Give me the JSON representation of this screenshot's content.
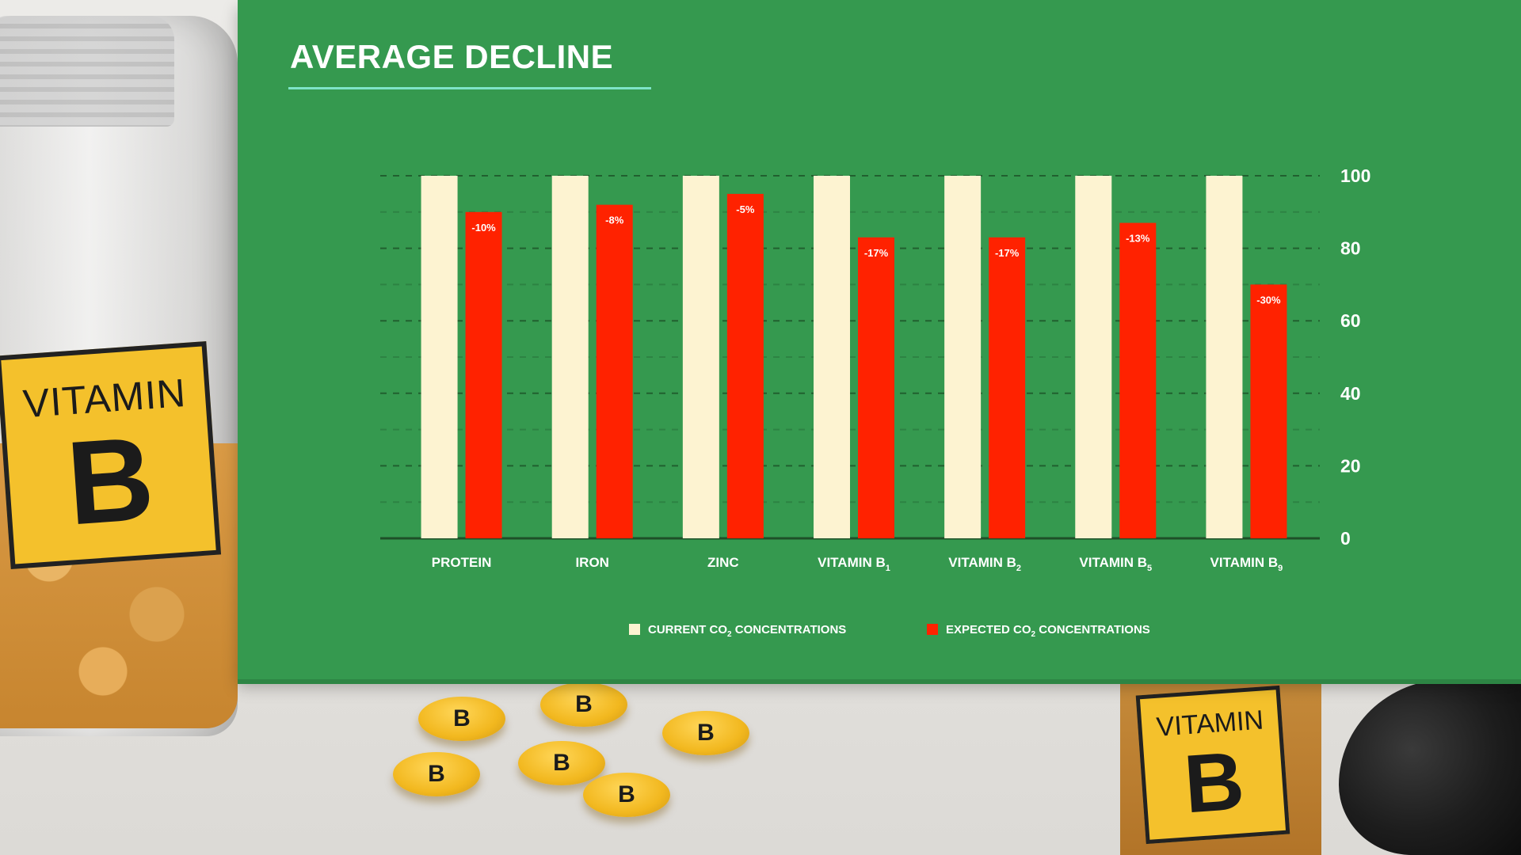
{
  "background": {
    "jar_label_left": {
      "line1": "VITAMIN",
      "line2": "B"
    },
    "jar_label_right": {
      "line1": "VITAMIN",
      "line2": "B"
    },
    "pill_letter": "B"
  },
  "colors": {
    "panel": "#35994f",
    "current": "#fdf3d1",
    "expected": "#ff2200"
  },
  "chart_data": {
    "type": "bar",
    "title": "AVERAGE DECLINE",
    "categories": [
      {
        "name": "PROTEIN",
        "sub": ""
      },
      {
        "name": "IRON",
        "sub": ""
      },
      {
        "name": "ZINC",
        "sub": ""
      },
      {
        "name": "VITAMIN B",
        "sub": "1"
      },
      {
        "name": "VITAMIN B",
        "sub": "2"
      },
      {
        "name": "VITAMIN B",
        "sub": "5"
      },
      {
        "name": "VITAMIN B",
        "sub": "9"
      }
    ],
    "series": [
      {
        "name": "CURRENT CO",
        "name_sub": "2",
        "name_rest": " CONCENTRATIONS",
        "values": [
          100,
          100,
          100,
          100,
          100,
          100,
          100
        ]
      },
      {
        "name": "EXPECTED CO",
        "name_sub": "2",
        "name_rest": " CONCENTRATIONS",
        "values": [
          90,
          92,
          95,
          83,
          83,
          87,
          70
        ]
      }
    ],
    "data_labels": [
      "-10%",
      "-8%",
      "-5%",
      "-17%",
      "-17%",
      "-13%",
      "-30%"
    ],
    "yticks": [
      "0",
      "20",
      "40",
      "60",
      "80",
      "100"
    ],
    "ylim": [
      0,
      100
    ],
    "y_axis_side": "right",
    "grid": true,
    "legend_position": "bottom-center"
  }
}
